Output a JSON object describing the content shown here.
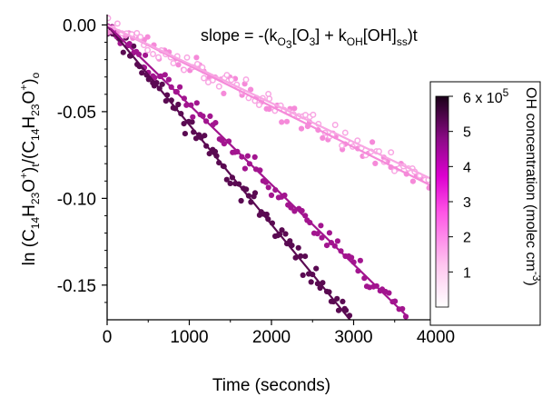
{
  "chart_data": {
    "type": "scatter",
    "xlabel": "Time (seconds)",
    "ylabel": {
      "prefix": "ln (C",
      "sub1": "14",
      "mid1": "H",
      "sub2": "23",
      "mid2": "O",
      "sup1": "+",
      "mid3": ")",
      "sub3": "t",
      "mid4": "/(C",
      "sub4": "14",
      "mid5": "H",
      "sub5": "23",
      "mid6": "O",
      "sup2": "+",
      "mid7": ")",
      "sub6": "o"
    },
    "xlim": [
      0,
      4000
    ],
    "ylim": [
      -0.17,
      0.006
    ],
    "xticks": [
      0,
      1000,
      2000,
      3000,
      4000
    ],
    "xtick_labels": [
      "0",
      "1000",
      "2000",
      "3000",
      "4000"
    ],
    "yticks": [
      0.0,
      -0.05,
      -0.1,
      -0.15
    ],
    "ytick_labels": [
      "0.00",
      "-0.05",
      "-0.10",
      "-0.15"
    ],
    "annotation": {
      "a": "slope = -(k",
      "b": "O",
      "c": "3",
      "d": "[O",
      "e": "3",
      "f": "] + k",
      "g": "OH",
      "h": "[OH]",
      "i": "ss",
      "j": ")t"
    },
    "colorbar": {
      "title_main": "OH concentration (molec cm",
      "title_sup": "-3",
      "title_end": ")",
      "top_label_main": "6 x 10",
      "top_label_sup": "5",
      "tick_labels": [
        "5",
        "4",
        "3",
        "2",
        "1"
      ],
      "tick_values": [
        5,
        4,
        3,
        2,
        1
      ],
      "range": [
        0,
        6
      ],
      "colors": [
        "#ffffff",
        "#ffc6ef",
        "#ff55e6",
        "#dd00d0",
        "#8a0a85",
        "#1a0018"
      ]
    },
    "series": [
      {
        "oh": 5.8,
        "slope": -5.75e-05,
        "marker": "filled",
        "n": 95,
        "xmax": 3000,
        "color": "#5a0a52",
        "seed": 11
      },
      {
        "oh": 4.3,
        "slope": -4.6e-05,
        "marker": "filled",
        "n": 95,
        "xmax": 3650,
        "color": "#a2158f",
        "seed": 23
      },
      {
        "oh": 1.7,
        "slope": -2.35e-05,
        "marker": "filled",
        "n": 65,
        "xmax": 4000,
        "color": "#f58ad9",
        "seed": 37
      },
      {
        "oh": 0.9,
        "slope": -2.25e-05,
        "marker": "open",
        "n": 75,
        "xmax": 4000,
        "color": "#f8a6e3",
        "seed": 51
      }
    ]
  }
}
